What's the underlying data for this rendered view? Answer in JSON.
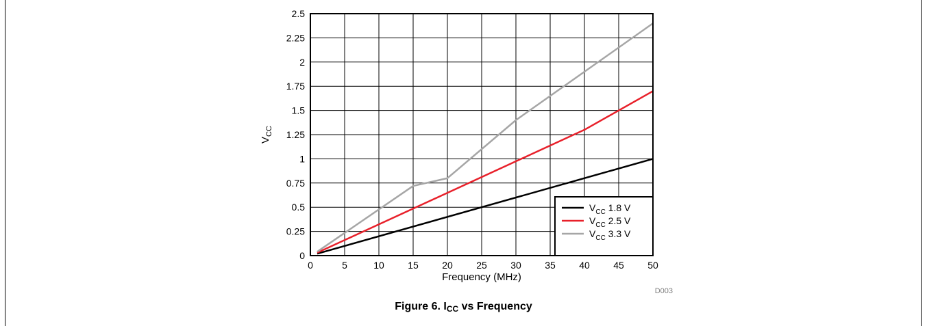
{
  "caption": {
    "prefix": "Figure 6. I",
    "sub": "CC",
    "suffix": " vs Frequency"
  },
  "figure_id": "D003",
  "chart_data": {
    "type": "line",
    "xlabel": "Frequency (MHz)",
    "ylabel_main": "V",
    "ylabel_sub": "CC",
    "xlim": [
      0,
      50
    ],
    "ylim": [
      0,
      2.5
    ],
    "x_ticks": [
      0,
      5,
      10,
      15,
      20,
      25,
      30,
      35,
      40,
      45,
      50
    ],
    "y_ticks": [
      0,
      0.25,
      0.5,
      0.75,
      1,
      1.25,
      1.5,
      1.75,
      2,
      2.25,
      2.5
    ],
    "y_tick_labels": [
      "0",
      "0.25",
      "0.5",
      "0.75",
      "1",
      "1.25",
      "1.5",
      "1.75",
      "2",
      "2.25",
      "2.5"
    ],
    "grid": true,
    "legend_position": "bottom-right",
    "series": [
      {
        "name_main": "V",
        "name_sub": "CC",
        "name_suffix": " 1.8 V",
        "color": "#000000",
        "x": [
          1,
          50
        ],
        "y": [
          0.02,
          1.0
        ]
      },
      {
        "name_main": "V",
        "name_sub": "CC",
        "name_suffix": " 2.5 V",
        "color": "#e8202a",
        "x": [
          1,
          40,
          50
        ],
        "y": [
          0.03,
          1.3,
          1.7
        ]
      },
      {
        "name_main": "V",
        "name_sub": "CC",
        "name_suffix": " 3.3 V",
        "color": "#a6a6a6",
        "x": [
          1,
          15,
          20,
          30,
          50
        ],
        "y": [
          0.04,
          0.72,
          0.8,
          1.4,
          2.4
        ]
      }
    ]
  }
}
